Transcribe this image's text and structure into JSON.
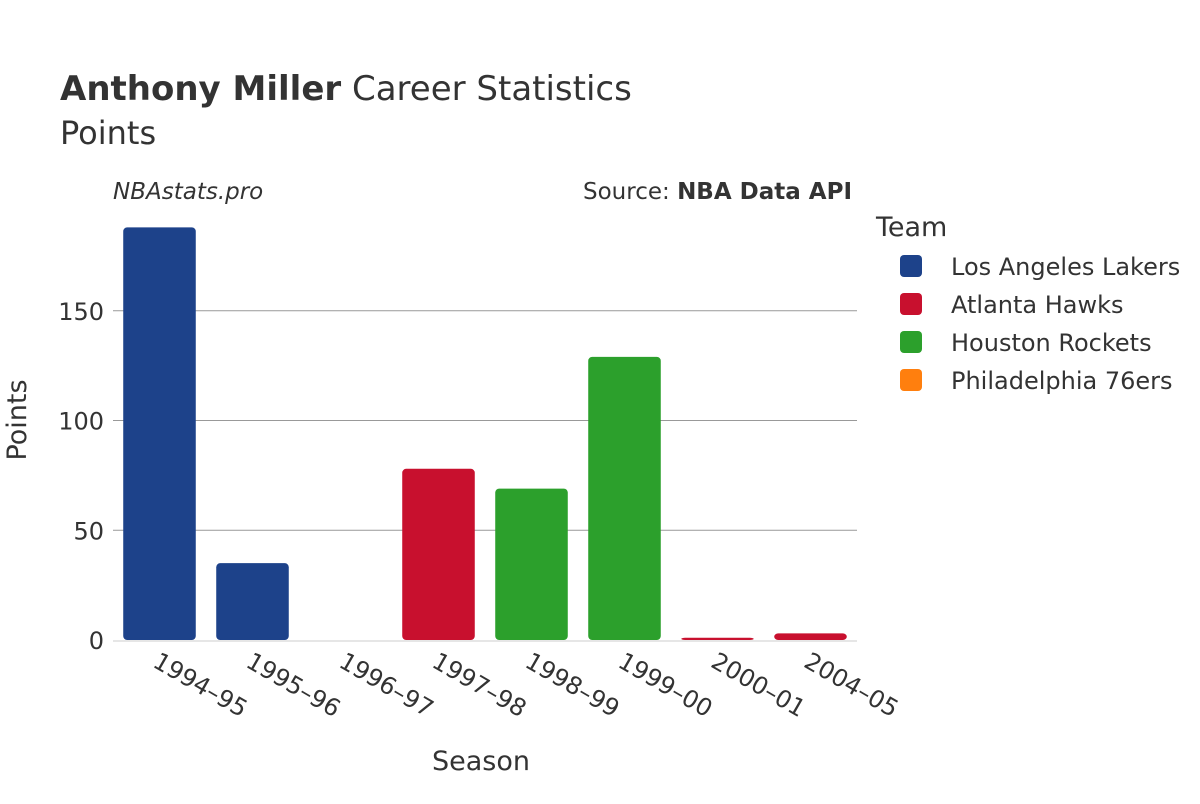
{
  "header": {
    "title_bold": "Anthony Miller",
    "title_rest": " Career Statistics",
    "subtitle": "Points"
  },
  "site": "NBAstats.pro",
  "source": {
    "prefix": "Source: ",
    "name": "NBA Data API"
  },
  "legend": {
    "title": "Team",
    "items": [
      {
        "label": "Los Angeles Lakers",
        "color": "#1d428a"
      },
      {
        "label": "Atlanta Hawks",
        "color": "#c8102e"
      },
      {
        "label": "Houston Rockets",
        "color": "#2ca02c"
      },
      {
        "label": "Philadelphia 76ers",
        "color": "#ff7f0e"
      }
    ]
  },
  "chart_data": {
    "type": "bar",
    "xlabel": "Season",
    "ylabel": "Points",
    "ylim": [
      0,
      190
    ],
    "yticks": [
      0,
      50,
      100,
      150
    ],
    "grid": true,
    "legend_position": "right",
    "categories": [
      "1994–95",
      "1995–96",
      "1996–97",
      "1997–98",
      "1998–99",
      "1999–00",
      "2000–01",
      "2004–05"
    ],
    "bars": [
      {
        "season": "1994–95",
        "team": "Los Angeles Lakers",
        "value": 188
      },
      {
        "season": "1995–96",
        "team": "Los Angeles Lakers",
        "value": 35
      },
      {
        "season": "1996–97",
        "team": "Philadelphia 76ers",
        "value": 0
      },
      {
        "season": "1997–98",
        "team": "Atlanta Hawks",
        "value": 78
      },
      {
        "season": "1998–99",
        "team": "Houston Rockets",
        "value": 69
      },
      {
        "season": "1999–00",
        "team": "Houston Rockets",
        "value": 129
      },
      {
        "season": "2000–01",
        "team": "Atlanta Hawks",
        "value": 1
      },
      {
        "season": "2004–05",
        "team": "Atlanta Hawks",
        "value": 3
      }
    ]
  }
}
